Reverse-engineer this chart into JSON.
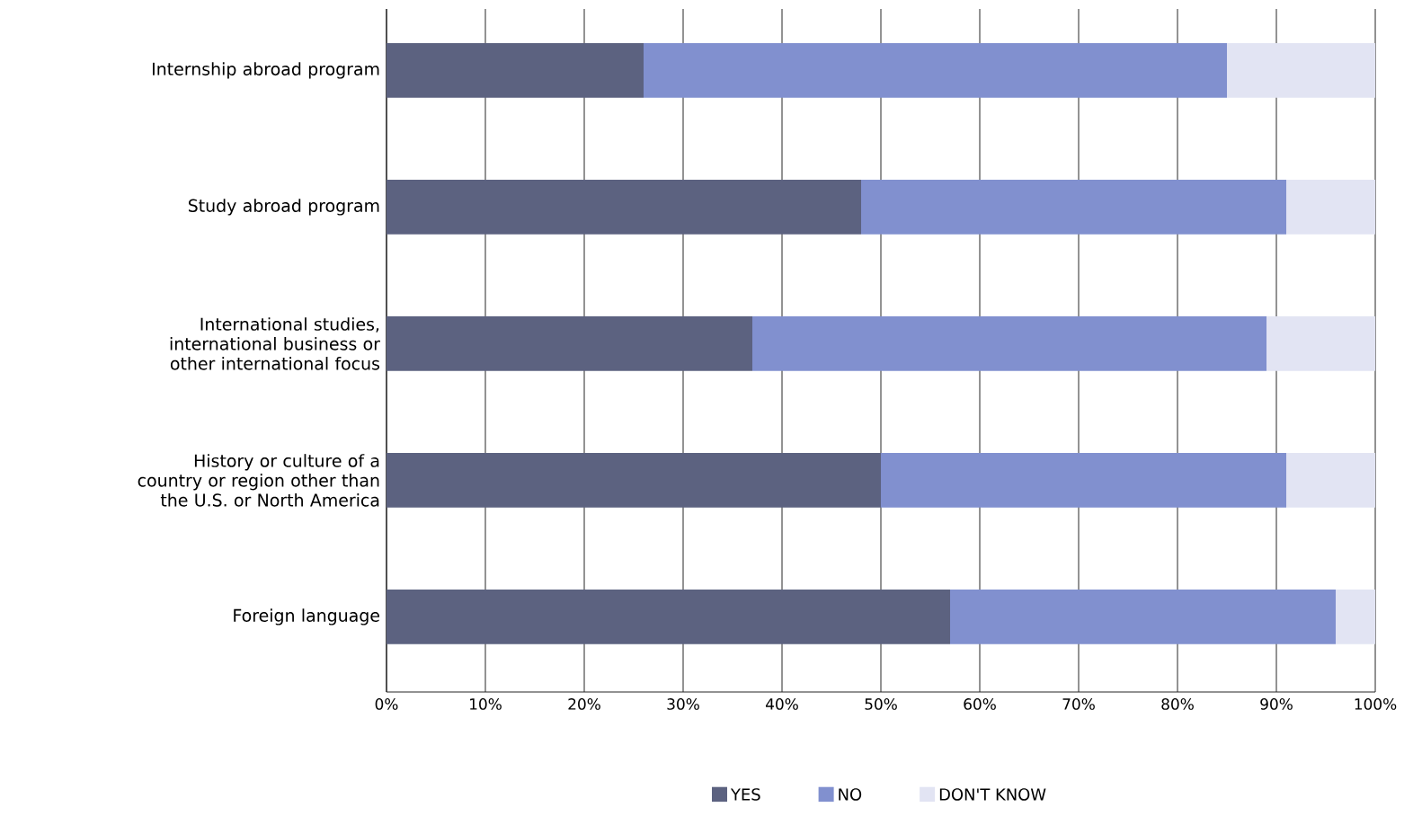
{
  "chart_data": {
    "type": "bar",
    "orientation": "horizontal",
    "stacked": true,
    "categories": [
      "Internship abroad program",
      "Study abroad program",
      "International studies, international business or other international focus",
      "History or culture of a country or region other than the U.S. or North America",
      "Foreign language"
    ],
    "series": [
      {
        "name": "YES",
        "color": "#5c6280",
        "values": [
          26,
          48,
          37,
          50,
          57
        ]
      },
      {
        "name": "NO",
        "color": "#8190cf",
        "values": [
          59,
          43,
          52,
          41,
          39
        ]
      },
      {
        "name": "DON'T KNOW",
        "color": "#e2e4f3",
        "values": [
          15,
          9,
          11,
          9,
          4
        ]
      }
    ],
    "xlim": [
      0,
      100
    ],
    "xticks": [
      {
        "value": 0,
        "label": "0%"
      },
      {
        "value": 10,
        "label": "10%"
      },
      {
        "value": 20,
        "label": "20%"
      },
      {
        "value": 30,
        "label": "30%"
      },
      {
        "value": 40,
        "label": "40%"
      },
      {
        "value": 50,
        "label": "50%"
      },
      {
        "value": 60,
        "label": "60%"
      },
      {
        "value": 70,
        "label": "70%"
      },
      {
        "value": 80,
        "label": "80%"
      },
      {
        "value": 90,
        "label": "90%"
      },
      {
        "value": 100,
        "label": "100%"
      }
    ],
    "grid": "x",
    "legend": "bottom"
  }
}
